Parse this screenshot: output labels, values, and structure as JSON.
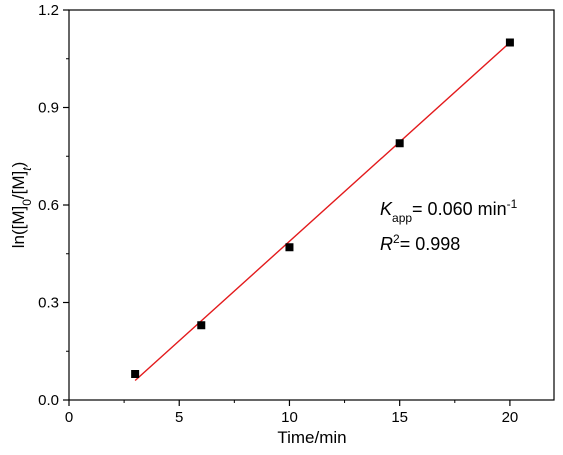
{
  "chart_data": {
    "type": "scatter",
    "title": "",
    "xlabel": "Time/min",
    "ylabel": "ln([M]0/[M]t)",
    "ylabel_parts": {
      "prefix": "ln([M]",
      "sub1": "0",
      "mid": "/[M]",
      "sub2": "t",
      "suffix": ")"
    },
    "xlim": [
      0,
      22
    ],
    "ylim": [
      0,
      1.2
    ],
    "xticks": [
      0,
      5,
      10,
      15,
      20
    ],
    "yticks": [
      0.0,
      0.3,
      0.6,
      0.9,
      1.2
    ],
    "xtick_labels": [
      "0",
      "5",
      "10",
      "15",
      "20"
    ],
    "ytick_labels": [
      "0.0",
      "0.3",
      "0.6",
      "0.9",
      "1.2"
    ],
    "grid": false,
    "series": [
      {
        "marker": "square",
        "color": "#000000",
        "x": [
          3,
          6,
          10,
          15,
          20
        ],
        "y": [
          0.08,
          0.23,
          0.47,
          0.79,
          1.1
        ]
      }
    ],
    "fit_line": {
      "color": "#e31a1c",
      "x": [
        3,
        20
      ],
      "y": [
        0.06,
        1.1
      ]
    },
    "annotations": {
      "kapp_symbol": "K",
      "kapp_sub": "app",
      "kapp_value": "= 0.060 min",
      "kapp_sup": "-1",
      "r2_symbol": "R",
      "r2_sup": "2",
      "r2_value": "= 0.998"
    }
  }
}
